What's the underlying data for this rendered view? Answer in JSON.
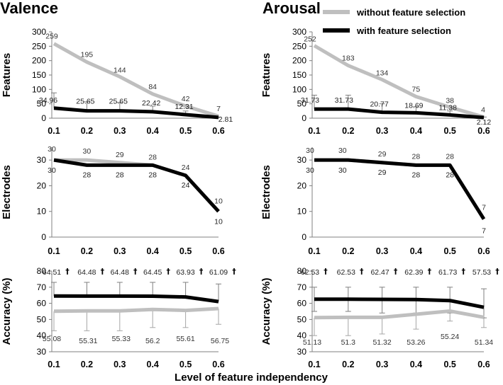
{
  "figure": {
    "columns": [
      "Valence",
      "Arousal"
    ],
    "x_title": "Level of feature independency",
    "legend": [
      {
        "label": "without feature selection",
        "color": "#bfbfbf"
      },
      {
        "label": "with feature selection",
        "color": "#000000"
      }
    ],
    "dagger": "†"
  },
  "chart_data": [
    {
      "type": "line",
      "panel": "Valence",
      "title": "Valence",
      "ylabel": "Features",
      "categories": [
        "0.1",
        "0.2",
        "0.3",
        "0.4",
        "0.5",
        "0.6"
      ],
      "ylim": [
        0,
        300
      ],
      "yticks": [
        "0",
        "50",
        "100",
        "150",
        "200",
        "250",
        "300"
      ],
      "series": [
        {
          "name": "without feature selection",
          "values": [
            259,
            195,
            144,
            84,
            42,
            7
          ],
          "labels": [
            "259",
            "195",
            "144",
            "84",
            "42",
            "7"
          ]
        },
        {
          "name": "with feature selection",
          "values": [
            34.96,
            25.65,
            25.65,
            22.42,
            12.31,
            2.81
          ],
          "labels": [
            "34.96",
            "25.65",
            "25.65",
            "22.42",
            "12.31",
            "2.81"
          ],
          "error_upper": [
            88,
            57,
            55,
            42,
            25,
            4
          ]
        }
      ]
    },
    {
      "type": "line",
      "panel": "Arousal",
      "title": "Arousal",
      "ylabel": "Features",
      "categories": [
        "0.1",
        "0.2",
        "0.3",
        "0.4",
        "0.5",
        "0.6"
      ],
      "ylim": [
        0,
        300
      ],
      "yticks": [
        "0",
        "50",
        "100",
        "150",
        "200",
        "250",
        "300"
      ],
      "series": [
        {
          "name": "without feature selection",
          "values": [
            252,
            183,
            134,
            75,
            38,
            4
          ],
          "labels": [
            "252",
            "183",
            "134",
            "75",
            "38",
            "4"
          ]
        },
        {
          "name": "with feature selection",
          "values": [
            31.73,
            31.73,
            20.77,
            18.69,
            11.38,
            2.12
          ],
          "labels": [
            "31.73",
            "31.73",
            "20.77",
            "18.69",
            "11.38",
            "2.12"
          ],
          "error_upper": [
            80,
            80,
            50,
            40,
            25,
            4
          ]
        }
      ]
    },
    {
      "type": "line",
      "panel": "Valence",
      "ylabel": "Electrodes",
      "categories": [
        "0.1",
        "0.2",
        "0.3",
        "0.4",
        "0.5",
        "0.6"
      ],
      "ylim": [
        0,
        35
      ],
      "yticks": [
        "0",
        "10",
        "20",
        "30"
      ],
      "series": [
        {
          "name": "without feature selection",
          "values": [
            30,
            30,
            29,
            28,
            24,
            10
          ],
          "labels": [
            "30",
            "30",
            "29",
            "28",
            "24",
            "10"
          ]
        },
        {
          "name": "with feature selection",
          "values": [
            30,
            28,
            28,
            28,
            24,
            10
          ],
          "labels": [
            "30",
            "28",
            "28",
            "28",
            "24",
            "10"
          ]
        }
      ]
    },
    {
      "type": "line",
      "panel": "Arousal",
      "ylabel": "Electrodes",
      "categories": [
        "0.1",
        "0.2",
        "0.3",
        "0.4",
        "0.5",
        "0.6"
      ],
      "ylim": [
        0,
        35
      ],
      "yticks": [
        "0",
        "10",
        "20",
        "30"
      ],
      "series": [
        {
          "name": "without feature selection",
          "values": [
            30,
            30,
            29,
            28,
            28,
            7
          ],
          "labels": [
            "30",
            "30",
            "29",
            "28",
            "28",
            "7"
          ]
        },
        {
          "name": "with feature selection",
          "values": [
            30,
            30,
            29,
            28,
            28,
            7
          ],
          "labels": [
            "30",
            "30",
            "29",
            "28",
            "28",
            "7"
          ]
        }
      ]
    },
    {
      "type": "line",
      "panel": "Valence",
      "ylabel": "Accuracy (%)",
      "categories": [
        "0.1",
        "0.2",
        "0.3",
        "0.4",
        "0.5",
        "0.6"
      ],
      "ylim": [
        30,
        80
      ],
      "yticks": [
        "30",
        "40",
        "50",
        "60",
        "70",
        "80"
      ],
      "series": [
        {
          "name": "without feature selection",
          "values": [
            55.08,
            55.31,
            55.33,
            56.2,
            55.61,
            56.75
          ],
          "labels": [
            "55.08",
            "55.31",
            "55.33",
            "56.2",
            "55.61",
            "56.75"
          ],
          "error_lower": [
            43,
            43,
            43,
            45,
            45,
            47
          ]
        },
        {
          "name": "with feature selection",
          "values": [
            64.51,
            64.48,
            64.48,
            64.45,
            63.93,
            61.09
          ],
          "labels": [
            "64.51",
            "64.48",
            "64.48",
            "64.45",
            "63.93",
            "61.09"
          ],
          "error_upper": [
            73,
            73,
            73,
            73,
            73,
            72
          ],
          "dagger": true
        }
      ]
    },
    {
      "type": "line",
      "panel": "Arousal",
      "ylabel": "Accuracy (%)",
      "categories": [
        "0.1",
        "0.2",
        "0.3",
        "0.4",
        "0.5",
        "0.6"
      ],
      "ylim": [
        30,
        80
      ],
      "yticks": [
        "30",
        "40",
        "50",
        "60",
        "70",
        "80"
      ],
      "series": [
        {
          "name": "without feature selection",
          "values": [
            51.13,
            51.3,
            51.32,
            53.26,
            55.24,
            51.34
          ],
          "labels": [
            "51.13",
            "51.3",
            "51.32",
            "53.26",
            "55.24",
            "51.34"
          ],
          "error_lower": [
            40,
            40,
            41,
            44,
            49,
            45
          ]
        },
        {
          "name": "with feature selection",
          "values": [
            62.53,
            62.53,
            62.47,
            62.39,
            61.73,
            57.53
          ],
          "labels": [
            "62.53",
            "62.53",
            "62.47",
            "62.39",
            "61.73",
            "57.53"
          ],
          "error_upper": [
            70,
            70,
            70,
            70,
            70,
            69
          ],
          "error_lower": [
            55,
            55,
            54,
            54,
            54,
            51
          ],
          "dagger": true
        }
      ]
    }
  ]
}
